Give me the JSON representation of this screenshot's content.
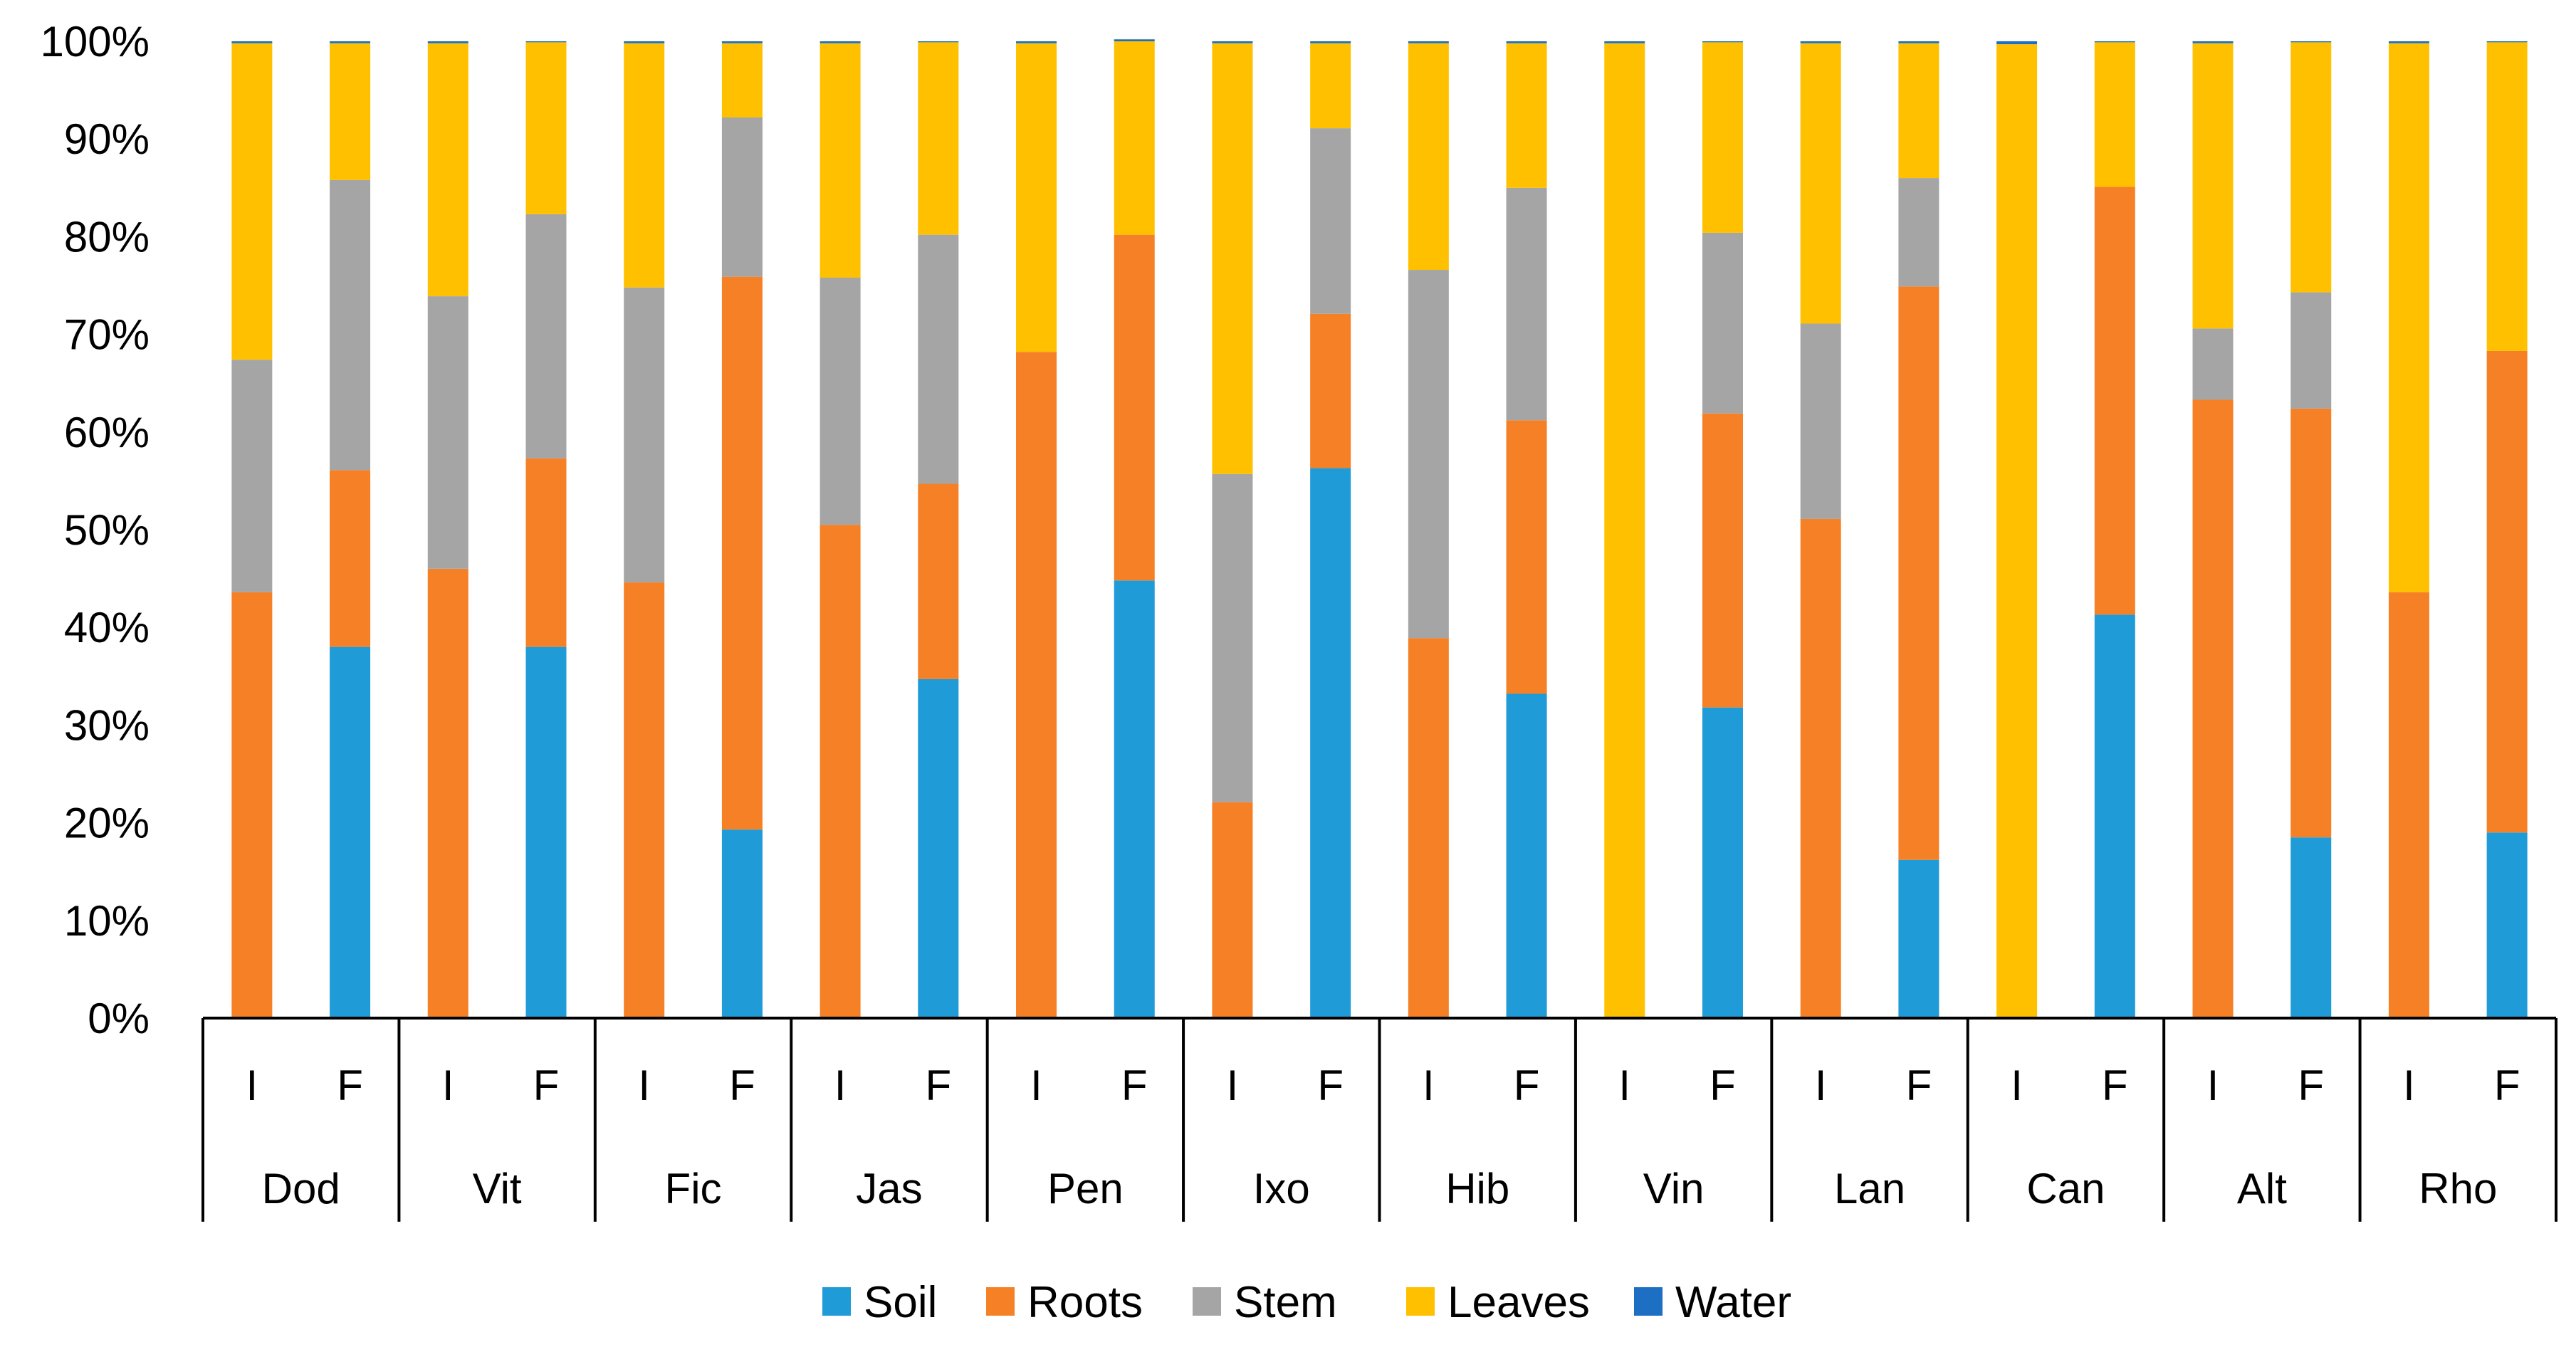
{
  "chart_data": {
    "type": "bar",
    "stacked": true,
    "percent_stacked": true,
    "title": "",
    "xlabel": "",
    "ylabel": "",
    "ylim": [
      0,
      100
    ],
    "ytick_values": [
      0,
      10,
      20,
      30,
      40,
      50,
      60,
      70,
      80,
      90,
      100
    ],
    "ytick_labels": [
      "0%",
      "10%",
      "20%",
      "30%",
      "40%",
      "50%",
      "60%",
      "70%",
      "80%",
      "90%",
      "100%"
    ],
    "groups": [
      "Dod",
      "Vit",
      "Fic",
      "Jas",
      "Pen",
      "Ixo",
      "Hib",
      "Vin",
      "Lan",
      "Can",
      "Alt",
      "Rho"
    ],
    "subcategories": [
      "I",
      "F"
    ],
    "legend_position": "bottom",
    "series": [
      {
        "name": "Soil",
        "color": "#1f9bd7",
        "values": [
          0,
          38,
          0,
          38,
          0,
          19.3,
          0,
          34.7,
          0,
          44.8,
          0,
          56.3,
          0,
          33.2,
          0,
          31.8,
          0,
          16.2,
          0,
          41.3,
          0,
          18.5,
          0,
          19
        ]
      },
      {
        "name": "Roots",
        "color": "#f58025",
        "values": [
          43.6,
          18.1,
          46,
          19.3,
          44.6,
          56.6,
          50.5,
          20,
          68.2,
          35.4,
          22.1,
          15.8,
          38.9,
          28,
          0,
          30.1,
          51.1,
          58.7,
          0,
          43.8,
          63.3,
          43.9,
          43.6,
          49.3
        ]
      },
      {
        "name": "Stem",
        "color": "#a5a5a5",
        "values": [
          23.8,
          29.7,
          27.9,
          25,
          30.2,
          16.3,
          25.3,
          25.5,
          0,
          0,
          33.6,
          19,
          37.7,
          23.8,
          0,
          18.5,
          20,
          11.1,
          0,
          0,
          7.3,
          11.9,
          0,
          0
        ]
      },
      {
        "name": "Leaves",
        "color": "#ffc000",
        "values": [
          32.4,
          14,
          25.9,
          17.6,
          25,
          7.6,
          24,
          19.7,
          31.6,
          19.8,
          44.1,
          8.7,
          23.2,
          14.8,
          99.8,
          19.5,
          28.7,
          13.8,
          99.7,
          14.8,
          29.2,
          25.6,
          56.2,
          31.6
        ]
      },
      {
        "name": "Water",
        "color": "#1c6fc2",
        "values": [
          0.2,
          0.2,
          0.2,
          0.1,
          0.2,
          0.2,
          0.2,
          0.1,
          0.2,
          0.2,
          0.2,
          0.2,
          0.2,
          0.2,
          0.2,
          0.1,
          0.2,
          0.2,
          0.3,
          0.1,
          0.2,
          0.1,
          0.2,
          0.1
        ]
      }
    ]
  }
}
